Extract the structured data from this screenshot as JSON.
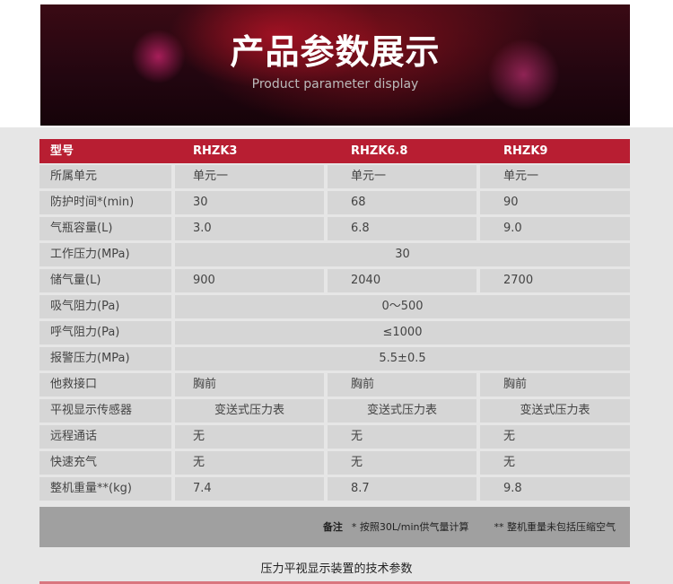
{
  "banner": {
    "title": "产品参数展示",
    "subtitle": "Product parameter display"
  },
  "table": {
    "header": [
      "型号",
      "RHZK3",
      "RHZK6.8",
      "RHZK9"
    ],
    "rows": [
      {
        "label": "所属单元",
        "values": [
          "单元一",
          "单元一",
          "单元一"
        ]
      },
      {
        "label": "防护时间*(min)",
        "values": [
          "30",
          "68",
          "90"
        ]
      },
      {
        "label": "气瓶容量(L)",
        "values": [
          "3.0",
          "6.8",
          "9.0"
        ]
      },
      {
        "label": "工作压力(MPa)",
        "merged": "30"
      },
      {
        "label": "储气量(L)",
        "values": [
          "900",
          "2040",
          "2700"
        ]
      },
      {
        "label": "吸气阻力(Pa)",
        "merged": "0～500"
      },
      {
        "label": "呼气阻力(Pa)",
        "merged": "≤1000"
      },
      {
        "label": "报警压力(MPa)",
        "merged": "5.5±0.5"
      },
      {
        "label": "他救接口",
        "values": [
          "胸前",
          "胸前",
          "胸前"
        ]
      },
      {
        "label": "平视显示传感器",
        "values": [
          "变送式压力表",
          "变送式压力表",
          "变送式压力表"
        ],
        "centered": true
      },
      {
        "label": "远程通话",
        "values": [
          "无",
          "无",
          "无"
        ]
      },
      {
        "label": "快速充气",
        "values": [
          "无",
          "无",
          "无"
        ]
      },
      {
        "label": "整机重量**(kg)",
        "values": [
          "7.4",
          "8.7",
          "9.8"
        ]
      }
    ]
  },
  "notes": {
    "label": "备注",
    "note1": "* 按照30L/min供气量计算",
    "note2": "** 整机重量未包括压缩空气"
  },
  "footer": {
    "title": "压力平视显示装置的技术参数"
  },
  "colors": {
    "header_red": "#b81e32",
    "cell_gray": "#d6d6d6",
    "notes_gray": "#a0a0a0"
  }
}
